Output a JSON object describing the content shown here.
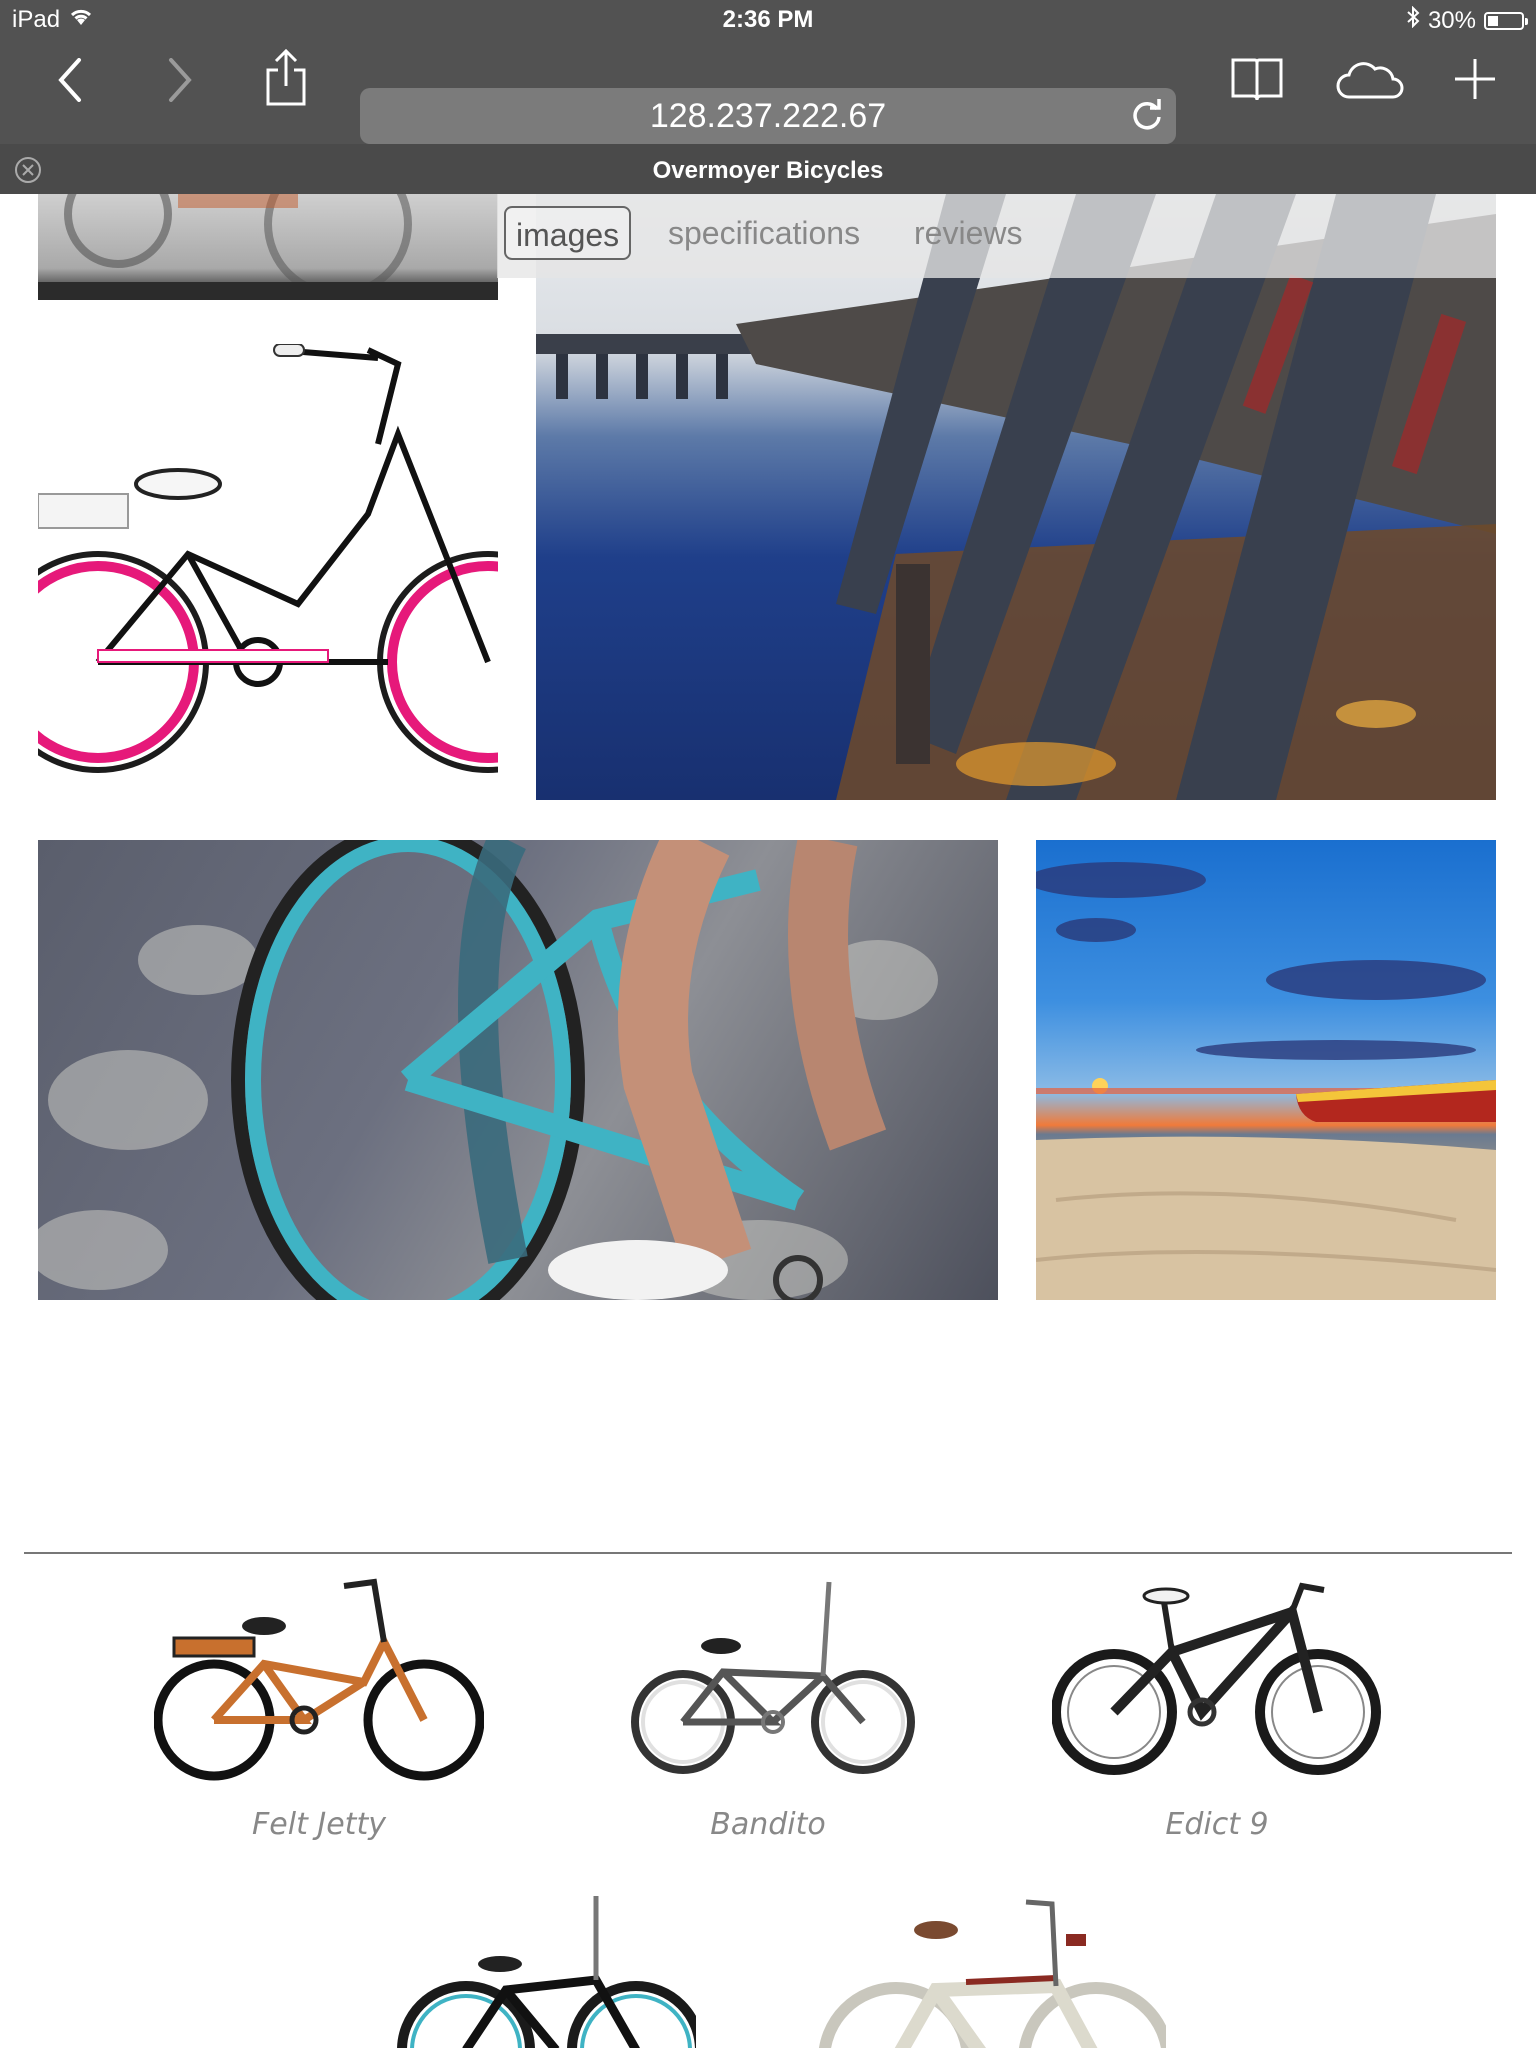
{
  "status": {
    "device": "iPad",
    "time": "2:36 PM",
    "battery_text": "30%",
    "battery_level": 0.3
  },
  "browser": {
    "url": "128.237.222.67",
    "tab_title": "Overmoyer Bicycles"
  },
  "product_tabs": [
    {
      "label": "images",
      "active": true
    },
    {
      "label": "specifications",
      "active": false
    },
    {
      "label": "reviews",
      "active": false
    }
  ],
  "related_products": [
    {
      "name": "Felt Jetty"
    },
    {
      "name": "Bandito"
    },
    {
      "name": "Edict 9"
    }
  ],
  "colors": {
    "chrome": "#525252",
    "tabstrip": "#4a4a4a",
    "bike_pink": "#e6197a",
    "bike_teal": "#3fb3c4",
    "bike_orange": "#c8702e"
  }
}
